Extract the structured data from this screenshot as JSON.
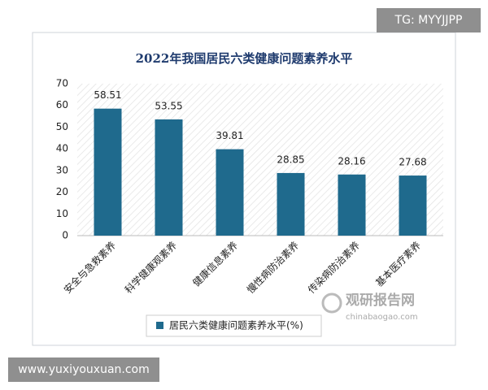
{
  "chart_data": {
    "type": "bar",
    "title": "2022年我国居民六类健康问题素养水平",
    "categories": [
      "安全与急救素养",
      "科学健康观素养",
      "健康信息素养",
      "慢性病防治素养",
      "传染病防治素养",
      "基本医疗素养"
    ],
    "series": [
      {
        "name": "居民六类健康问题素养水平(%)",
        "color": "#1f6a8d",
        "values": [
          58.51,
          53.55,
          39.81,
          28.85,
          28.16,
          27.68
        ]
      }
    ],
    "ylim": [
      0,
      70
    ],
    "yticks": [
      0,
      10,
      20,
      30,
      40,
      50,
      60,
      70
    ],
    "grid": false,
    "legend": "bottom",
    "annotations": [
      "TG: MYYJJPP",
      "www.yuxiyouxuan.com",
      "观研报告网",
      "chinabaogao.com"
    ]
  }
}
